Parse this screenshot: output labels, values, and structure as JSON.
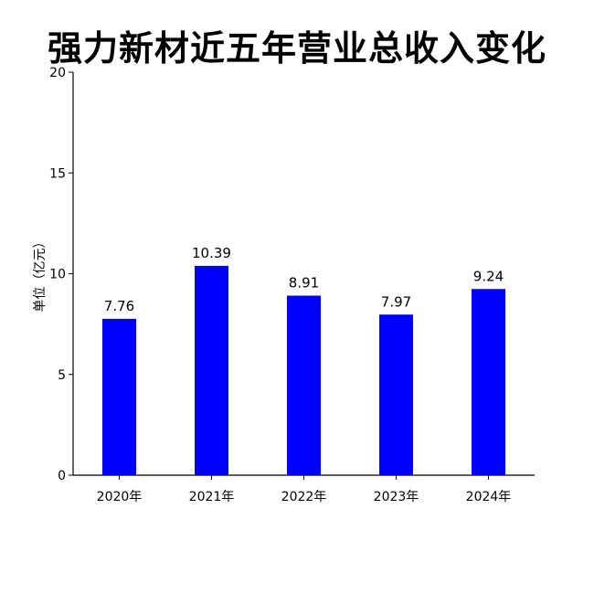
{
  "chart_data": {
    "type": "bar",
    "title": "强力新材近五年营业总收入变化",
    "xlabel": "",
    "ylabel": "单位（亿元）",
    "categories": [
      "2020年",
      "2021年",
      "2022年",
      "2023年",
      "2024年"
    ],
    "values": [
      7.76,
      10.39,
      8.91,
      7.97,
      9.24
    ],
    "value_labels": [
      "7.76",
      "10.39",
      "8.91",
      "7.97",
      "9.24"
    ],
    "ylim": [
      0,
      20
    ],
    "yticks": [
      0,
      5,
      10,
      15,
      20
    ],
    "ytick_labels": [
      "0",
      "5",
      "10",
      "15",
      "20"
    ],
    "bar_color": "#0000ff",
    "grid": false,
    "legend": "none"
  }
}
